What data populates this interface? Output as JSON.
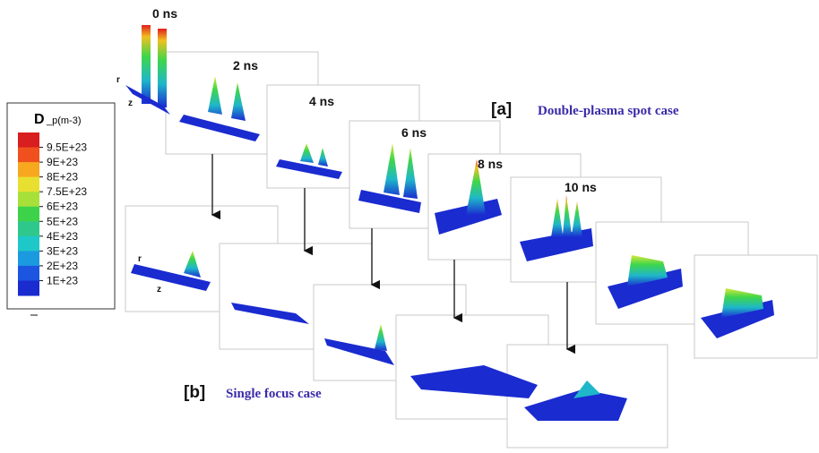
{
  "times": [
    "0 ns",
    "2 ns",
    "4 ns",
    "6 ns",
    "8 ns",
    "10 ns"
  ],
  "case_a": {
    "tag": "[a]",
    "title": "Double-plasma spot case"
  },
  "case_b": {
    "tag": "[b]",
    "title": "Single focus case"
  },
  "axes": {
    "top": {
      "r": "r",
      "z": "z"
    },
    "bottom": {
      "r": "r",
      "z": "z"
    }
  },
  "colorbar": {
    "symbol": "D",
    "unit": "_p(m-3)",
    "labels": [
      "9.5E+23",
      "9E+23",
      "8E+23",
      "7.5E+23",
      "6E+23",
      "5E+23",
      "4E+23",
      "3E+23",
      "2E+23",
      "1E+23"
    ]
  }
}
